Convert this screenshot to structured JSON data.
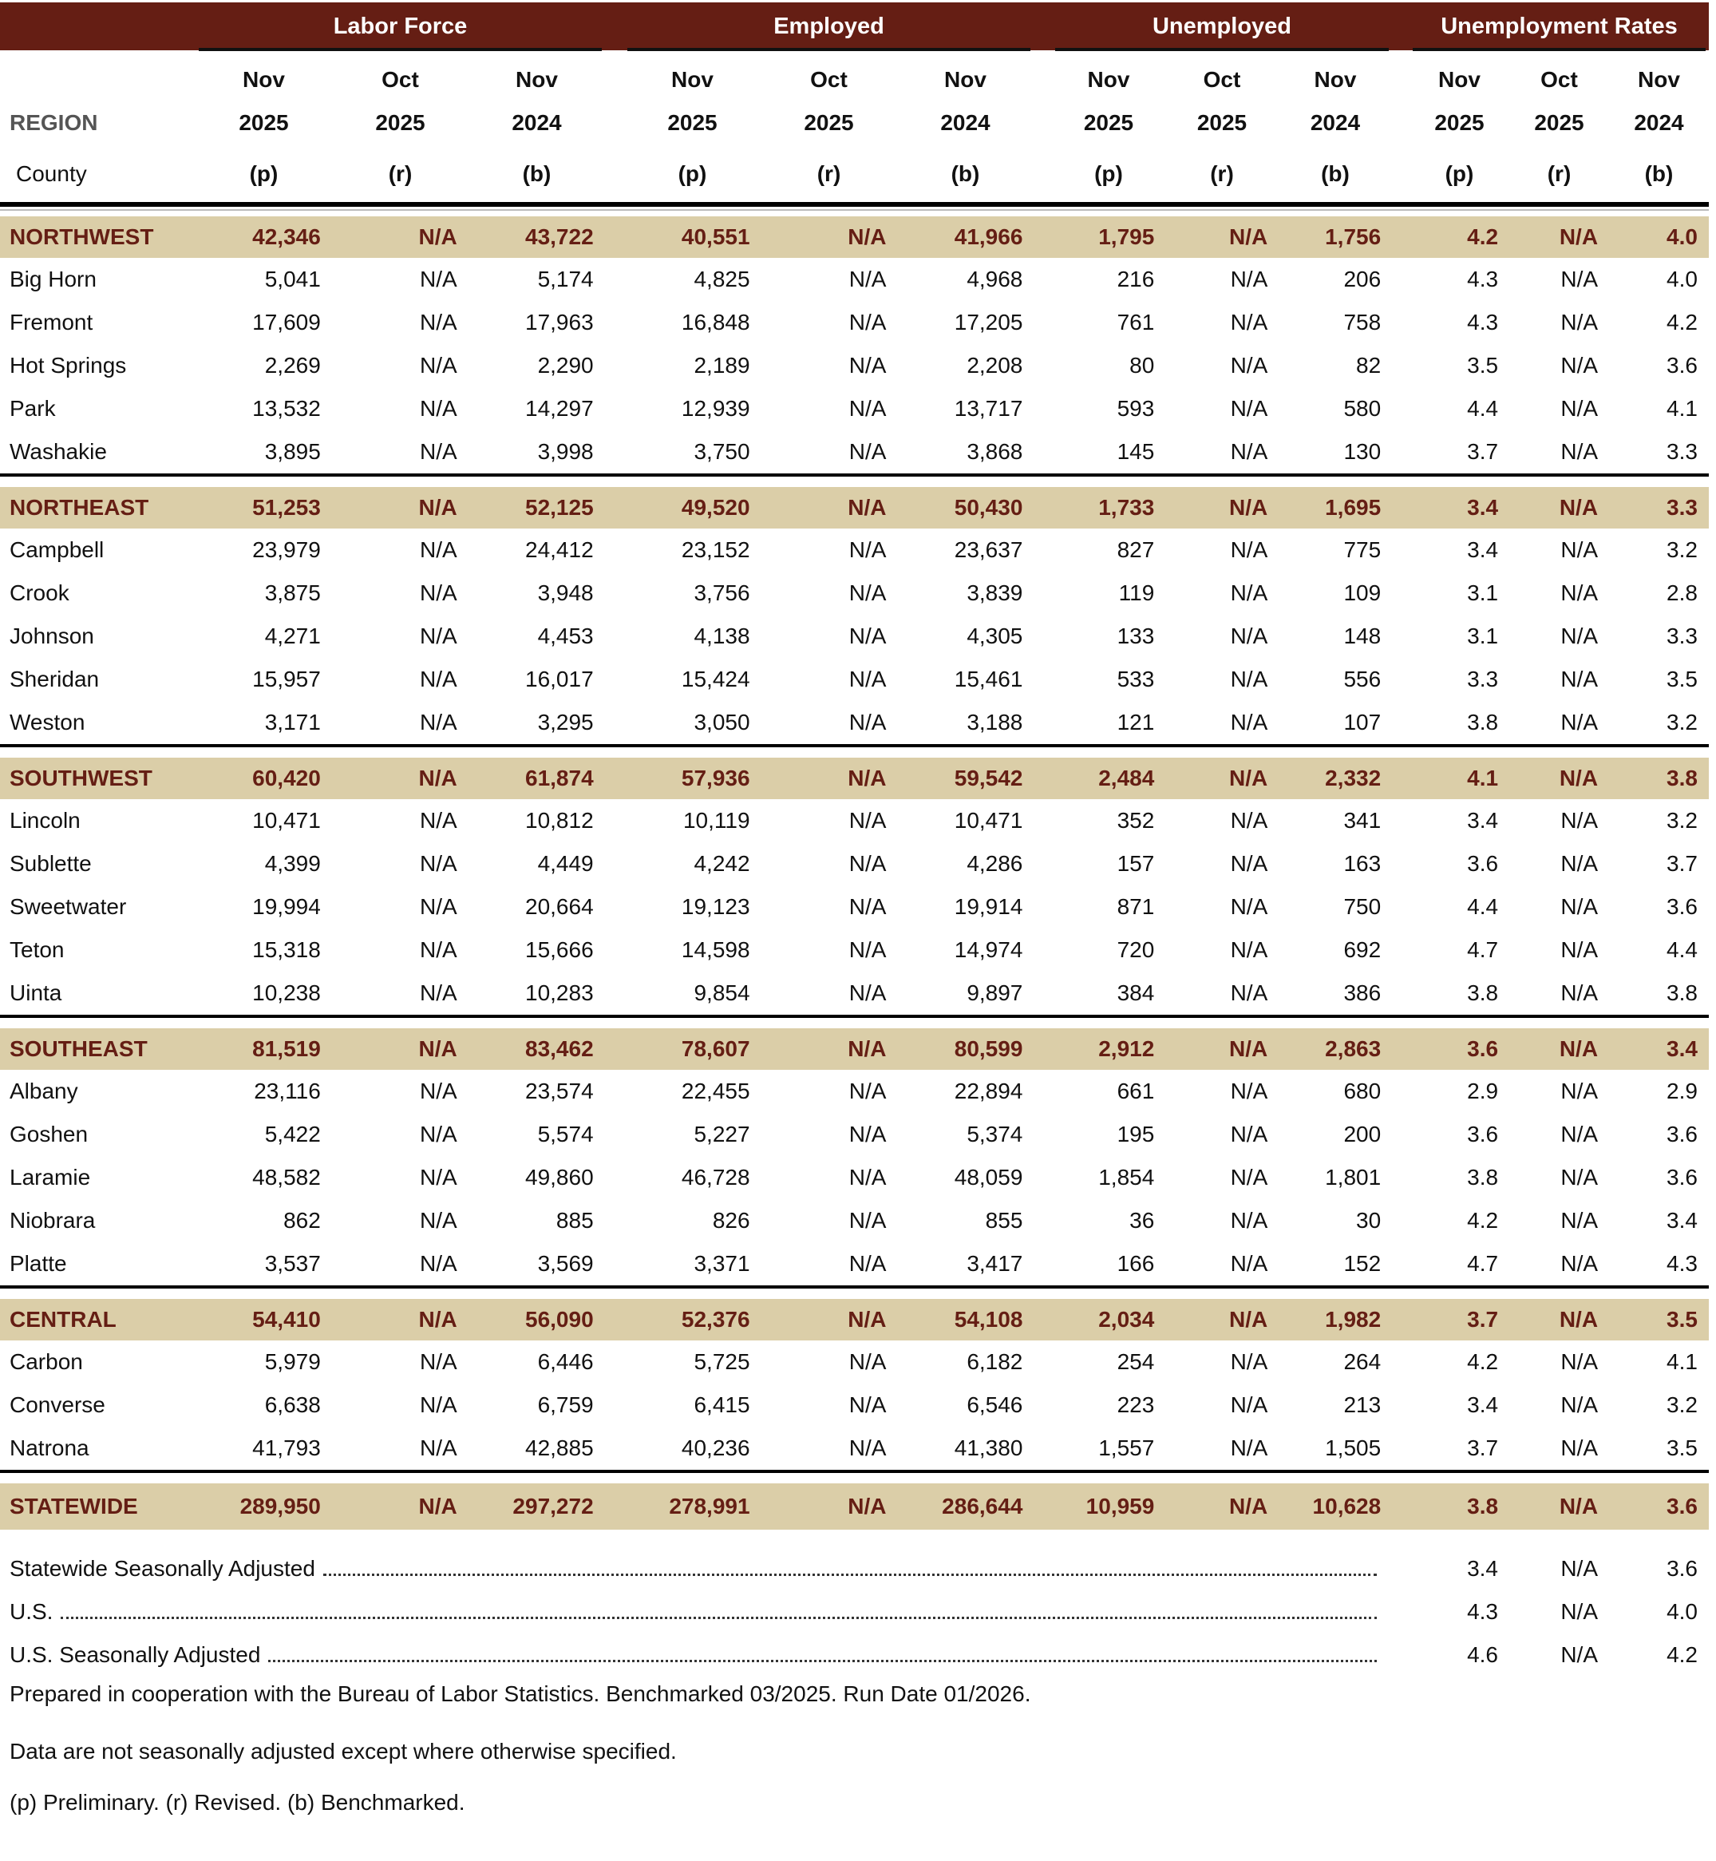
{
  "header": {
    "groups": [
      "Labor Force",
      "Employed",
      "Unemployed",
      "Unemployment Rates"
    ],
    "region_label": "REGION",
    "county_label": "County",
    "col_month": [
      "Nov",
      "Oct",
      "Nov"
    ],
    "col_year": [
      "2025",
      "2025",
      "2024"
    ],
    "col_status": [
      "(p)",
      "(r)",
      "(b)"
    ]
  },
  "colors": {
    "header_bg": "#651e14",
    "region_bg": "#dbcea8",
    "region_text": "#651e14"
  },
  "groups": [
    {
      "region": [
        "NORTHWEST",
        "42,346",
        "N/A",
        "43,722",
        "40,551",
        "N/A",
        "41,966",
        "1,795",
        "N/A",
        "1,756",
        "4.2",
        "N/A",
        "4.0"
      ],
      "counties": [
        [
          "Big Horn",
          "5,041",
          "N/A",
          "5,174",
          "4,825",
          "N/A",
          "4,968",
          "216",
          "N/A",
          "206",
          "4.3",
          "N/A",
          "4.0"
        ],
        [
          "Fremont",
          "17,609",
          "N/A",
          "17,963",
          "16,848",
          "N/A",
          "17,205",
          "761",
          "N/A",
          "758",
          "4.3",
          "N/A",
          "4.2"
        ],
        [
          "Hot Springs",
          "2,269",
          "N/A",
          "2,290",
          "2,189",
          "N/A",
          "2,208",
          "80",
          "N/A",
          "82",
          "3.5",
          "N/A",
          "3.6"
        ],
        [
          "Park",
          "13,532",
          "N/A",
          "14,297",
          "12,939",
          "N/A",
          "13,717",
          "593",
          "N/A",
          "580",
          "4.4",
          "N/A",
          "4.1"
        ],
        [
          "Washakie",
          "3,895",
          "N/A",
          "3,998",
          "3,750",
          "N/A",
          "3,868",
          "145",
          "N/A",
          "130",
          "3.7",
          "N/A",
          "3.3"
        ]
      ]
    },
    {
      "region": [
        "NORTHEAST",
        "51,253",
        "N/A",
        "52,125",
        "49,520",
        "N/A",
        "50,430",
        "1,733",
        "N/A",
        "1,695",
        "3.4",
        "N/A",
        "3.3"
      ],
      "counties": [
        [
          "Campbell",
          "23,979",
          "N/A",
          "24,412",
          "23,152",
          "N/A",
          "23,637",
          "827",
          "N/A",
          "775",
          "3.4",
          "N/A",
          "3.2"
        ],
        [
          "Crook",
          "3,875",
          "N/A",
          "3,948",
          "3,756",
          "N/A",
          "3,839",
          "119",
          "N/A",
          "109",
          "3.1",
          "N/A",
          "2.8"
        ],
        [
          "Johnson",
          "4,271",
          "N/A",
          "4,453",
          "4,138",
          "N/A",
          "4,305",
          "133",
          "N/A",
          "148",
          "3.1",
          "N/A",
          "3.3"
        ],
        [
          "Sheridan",
          "15,957",
          "N/A",
          "16,017",
          "15,424",
          "N/A",
          "15,461",
          "533",
          "N/A",
          "556",
          "3.3",
          "N/A",
          "3.5"
        ],
        [
          "Weston",
          "3,171",
          "N/A",
          "3,295",
          "3,050",
          "N/A",
          "3,188",
          "121",
          "N/A",
          "107",
          "3.8",
          "N/A",
          "3.2"
        ]
      ]
    },
    {
      "region": [
        "SOUTHWEST",
        "60,420",
        "N/A",
        "61,874",
        "57,936",
        "N/A",
        "59,542",
        "2,484",
        "N/A",
        "2,332",
        "4.1",
        "N/A",
        "3.8"
      ],
      "counties": [
        [
          "Lincoln",
          "10,471",
          "N/A",
          "10,812",
          "10,119",
          "N/A",
          "10,471",
          "352",
          "N/A",
          "341",
          "3.4",
          "N/A",
          "3.2"
        ],
        [
          "Sublette",
          "4,399",
          "N/A",
          "4,449",
          "4,242",
          "N/A",
          "4,286",
          "157",
          "N/A",
          "163",
          "3.6",
          "N/A",
          "3.7"
        ],
        [
          "Sweetwater",
          "19,994",
          "N/A",
          "20,664",
          "19,123",
          "N/A",
          "19,914",
          "871",
          "N/A",
          "750",
          "4.4",
          "N/A",
          "3.6"
        ],
        [
          "Teton",
          "15,318",
          "N/A",
          "15,666",
          "14,598",
          "N/A",
          "14,974",
          "720",
          "N/A",
          "692",
          "4.7",
          "N/A",
          "4.4"
        ],
        [
          "Uinta",
          "10,238",
          "N/A",
          "10,283",
          "9,854",
          "N/A",
          "9,897",
          "384",
          "N/A",
          "386",
          "3.8",
          "N/A",
          "3.8"
        ]
      ]
    },
    {
      "region": [
        "SOUTHEAST",
        "81,519",
        "N/A",
        "83,462",
        "78,607",
        "N/A",
        "80,599",
        "2,912",
        "N/A",
        "2,863",
        "3.6",
        "N/A",
        "3.4"
      ],
      "counties": [
        [
          "Albany",
          "23,116",
          "N/A",
          "23,574",
          "22,455",
          "N/A",
          "22,894",
          "661",
          "N/A",
          "680",
          "2.9",
          "N/A",
          "2.9"
        ],
        [
          "Goshen",
          "5,422",
          "N/A",
          "5,574",
          "5,227",
          "N/A",
          "5,374",
          "195",
          "N/A",
          "200",
          "3.6",
          "N/A",
          "3.6"
        ],
        [
          "Laramie",
          "48,582",
          "N/A",
          "49,860",
          "46,728",
          "N/A",
          "48,059",
          "1,854",
          "N/A",
          "1,801",
          "3.8",
          "N/A",
          "3.6"
        ],
        [
          "Niobrara",
          "862",
          "N/A",
          "885",
          "826",
          "N/A",
          "855",
          "36",
          "N/A",
          "30",
          "4.2",
          "N/A",
          "3.4"
        ],
        [
          "Platte",
          "3,537",
          "N/A",
          "3,569",
          "3,371",
          "N/A",
          "3,417",
          "166",
          "N/A",
          "152",
          "4.7",
          "N/A",
          "4.3"
        ]
      ]
    },
    {
      "region": [
        "CENTRAL",
        "54,410",
        "N/A",
        "56,090",
        "52,376",
        "N/A",
        "54,108",
        "2,034",
        "N/A",
        "1,982",
        "3.7",
        "N/A",
        "3.5"
      ],
      "counties": [
        [
          "Carbon",
          "5,979",
          "N/A",
          "6,446",
          "5,725",
          "N/A",
          "6,182",
          "254",
          "N/A",
          "264",
          "4.2",
          "N/A",
          "4.1"
        ],
        [
          "Converse",
          "6,638",
          "N/A",
          "6,759",
          "6,415",
          "N/A",
          "6,546",
          "223",
          "N/A",
          "213",
          "3.4",
          "N/A",
          "3.2"
        ],
        [
          "Natrona",
          "41,793",
          "N/A",
          "42,885",
          "40,236",
          "N/A",
          "41,380",
          "1,557",
          "N/A",
          "1,505",
          "3.7",
          "N/A",
          "3.5"
        ]
      ]
    }
  ],
  "statewide": [
    "STATEWIDE",
    "289,950",
    "N/A",
    "297,272",
    "278,991",
    "N/A",
    "286,644",
    "10,959",
    "N/A",
    "10,628",
    "3.8",
    "N/A",
    "3.6"
  ],
  "rates_footer": [
    [
      "Statewide Seasonally Adjusted",
      "3.4",
      "N/A",
      "3.6"
    ],
    [
      "U.S.",
      "4.3",
      "N/A",
      "4.0"
    ],
    [
      "U.S. Seasonally Adjusted",
      "4.6",
      "N/A",
      "4.2"
    ]
  ],
  "notes": [
    "Prepared in cooperation with the Bureau of Labor Statistics.  Benchmarked 03/2025. Run Date 01/2026.",
    "Data are not seasonally adjusted except where otherwise specified.",
    "(p) Preliminary. (r) Revised. (b) Benchmarked."
  ]
}
